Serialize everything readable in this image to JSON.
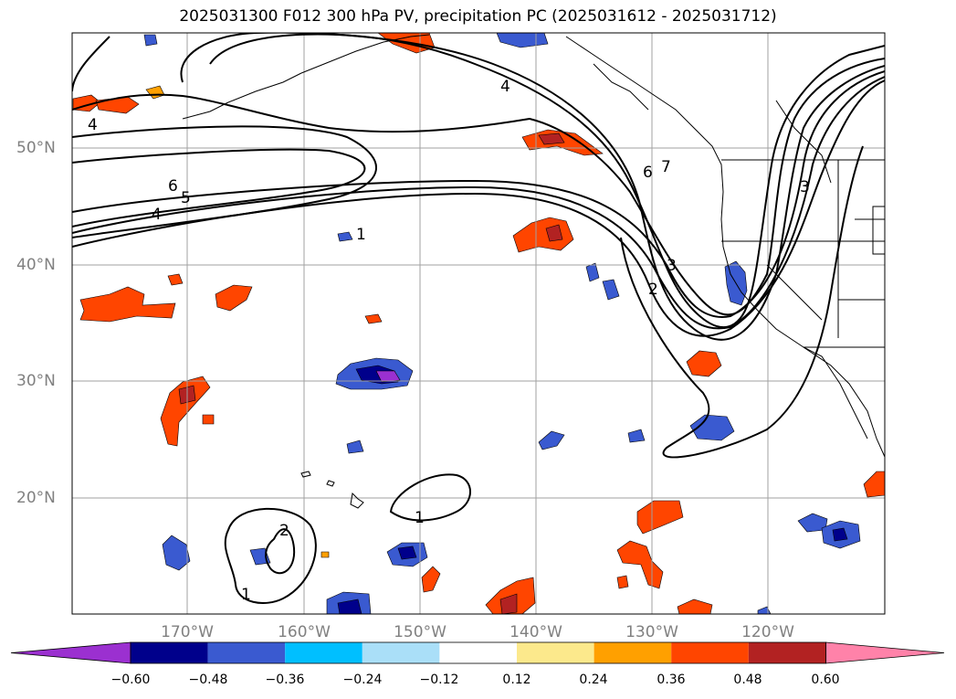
{
  "title": "2025031300 F012 300 hPa PV, precipitation PC (2025031612 - 2025031712)",
  "lat_labels": [
    "50°N",
    "40°N",
    "30°N",
    "20°N"
  ],
  "lon_labels": [
    "170°W",
    "160°W",
    "150°W",
    "140°W",
    "130°W",
    "120°W"
  ],
  "colorbar": {
    "labels": [
      "−0.60",
      "−0.48",
      "−0.36",
      "−0.24",
      "−0.12",
      "0.12",
      "0.24",
      "0.36",
      "0.48",
      "0.60"
    ],
    "colors": [
      "#9b30d0",
      "#00008b",
      "#3a5ad0",
      "#00bfff",
      "#aadff8",
      "#ffffff",
      "#fce98c",
      "#ffa000",
      "#ff4500",
      "#b22222",
      "#ff82a9"
    ]
  },
  "contour_labels": [
    "4",
    "6",
    "5",
    "4",
    "1",
    "4",
    "6",
    "7",
    "3",
    "2",
    "3",
    "1",
    "2",
    "1"
  ],
  "colors": {
    "frame": "#000000",
    "grid": "#a0a0a0",
    "axis_label": "#808080"
  }
}
